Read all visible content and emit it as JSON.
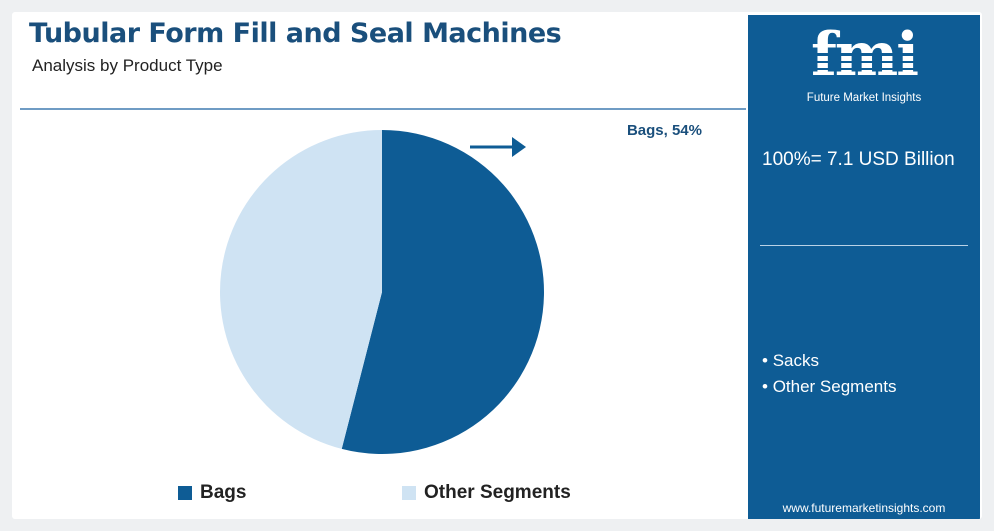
{
  "header": {
    "title": "Tubular Form Fill and Seal Machines",
    "subtitle": "Analysis by Product Type"
  },
  "chart_data": {
    "type": "pie",
    "title": "Tubular Form Fill and Seal Machines",
    "subtitle": "Analysis by Product Type",
    "categories": [
      "Bags",
      "Other Segments"
    ],
    "values": [
      54,
      46
    ],
    "units": "%",
    "colors": [
      "#0e5c95",
      "#cfe3f3"
    ],
    "data_labels": [
      "Bags, 54%"
    ],
    "legend": [
      "Bags",
      "Other Segments"
    ],
    "legend_position": "bottom"
  },
  "side_panel": {
    "logo_text": "fmi",
    "logo_caption": "Future Market Insights",
    "total": "100%= 7.1 USD Billion",
    "segments": [
      "Sacks",
      "Other Segments"
    ],
    "url": "www.futuremarketinsights.com"
  },
  "colors": {
    "accent_dark": "#0e5c95",
    "accent_light": "#cfe3f3",
    "title": "#1a4f7c",
    "strip": [
      "#72b046",
      "#e57c2f",
      "#9b3f8f"
    ]
  }
}
